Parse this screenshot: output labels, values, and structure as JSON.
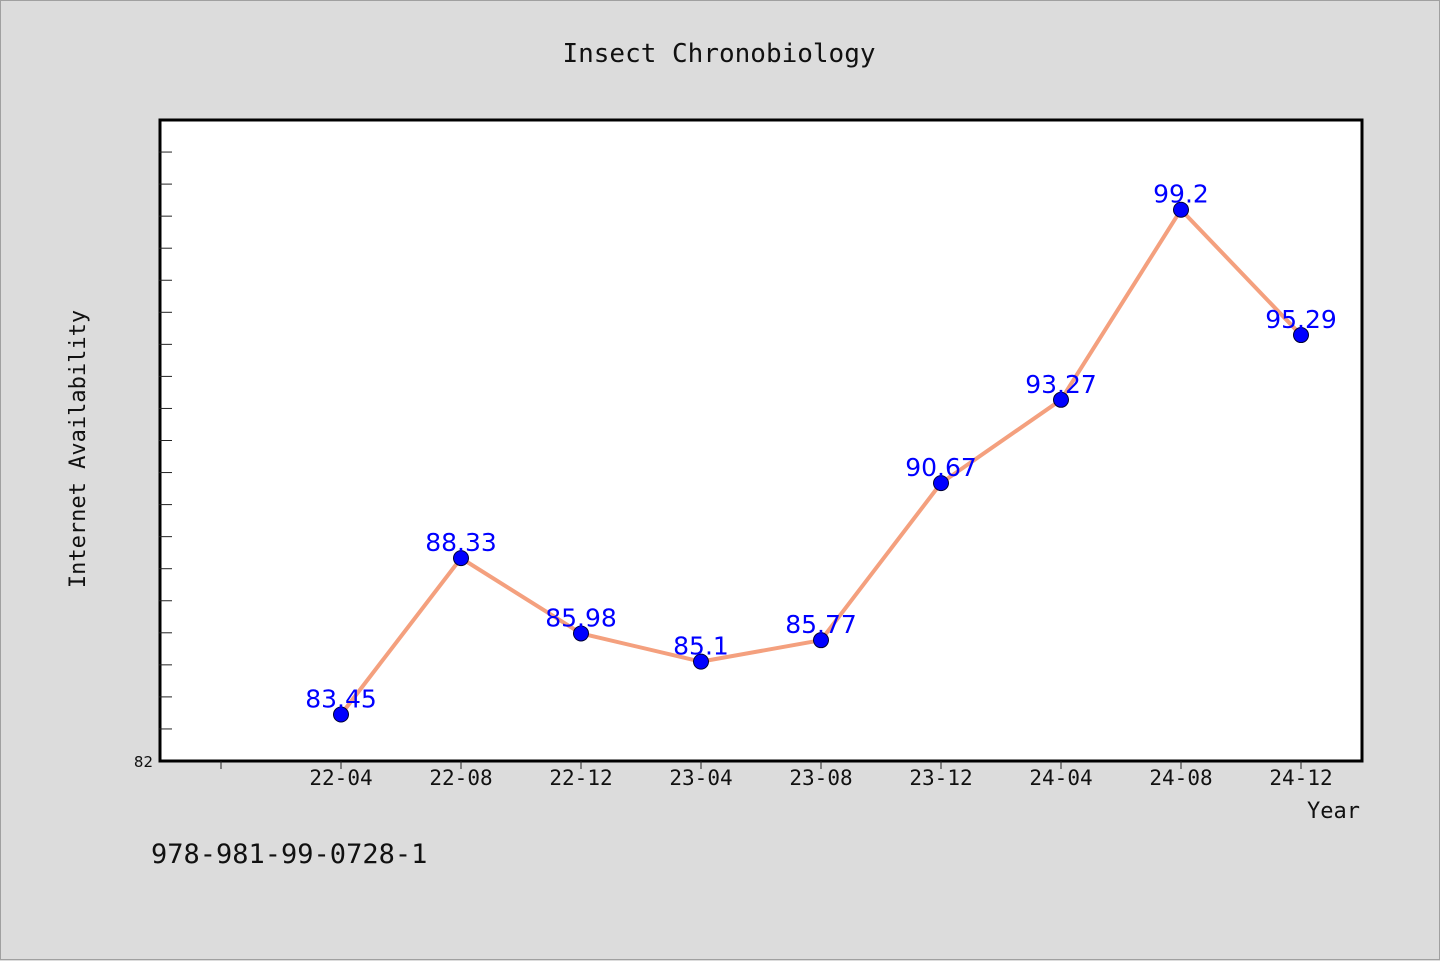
{
  "chart_data": {
    "type": "line",
    "title": "Insect Chronobiology",
    "xlabel": "Year",
    "ylabel": "Internet Availability",
    "categories": [
      "22-04",
      "22-08",
      "22-12",
      "23-04",
      "23-08",
      "23-12",
      "24-04",
      "24-08",
      "24-12"
    ],
    "series": [
      {
        "values": [
          83.45,
          88.33,
          85.98,
          85.1,
          85.77,
          90.67,
          93.27,
          99.2,
          95.29
        ],
        "line_color": "#f4a07e",
        "marker_color": "#0000ff"
      }
    ],
    "ylim": [
      82,
      102
    ],
    "y_tick_labels": [
      "82"
    ],
    "grid": false,
    "legend": "none"
  },
  "footer": {
    "isbn": "978-981-99-0728-1"
  },
  "colors": {
    "background": "#dcdcdc",
    "plot_background": "#ffffff",
    "line": "#f4a07e",
    "marker": "#0000ff",
    "data_label": "#0000ff"
  }
}
